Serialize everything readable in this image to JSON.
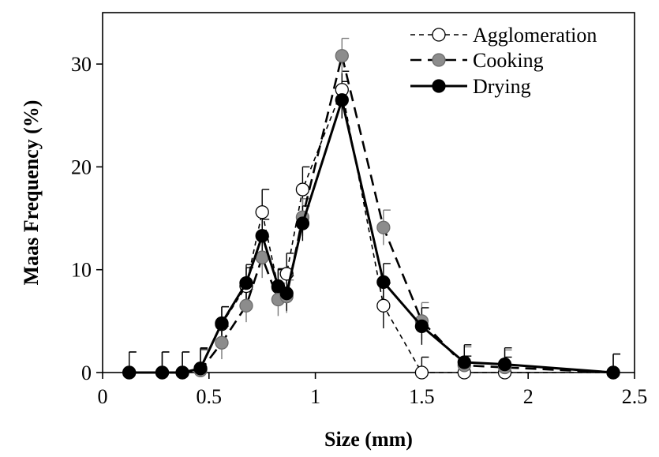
{
  "chart_data": {
    "type": "line",
    "xlabel": "Size (mm)",
    "ylabel": "Maas Frequency  (%)",
    "xlim": [
      0,
      2.5
    ],
    "ylim": [
      0,
      35
    ],
    "xticks": [
      0,
      0.5,
      1,
      1.5,
      2,
      2.5
    ],
    "xtick_labels": [
      "0",
      "0.5",
      "1",
      "1.5",
      "2",
      "2.5"
    ],
    "yticks": [
      0,
      10,
      20,
      30
    ],
    "ytick_labels": [
      "0",
      "10",
      "20",
      "30"
    ],
    "grid": false,
    "legend_position": "top-right",
    "series": [
      {
        "name": "Agglomeration",
        "line_style": "short-dash",
        "marker_fill": "#ffffff",
        "x": [
          0.125,
          0.28,
          0.375,
          0.46,
          0.56,
          0.675,
          0.75,
          0.825,
          0.865,
          0.94,
          1.125,
          1.32,
          1.5,
          1.7,
          1.89,
          2.4
        ],
        "y": [
          0,
          0,
          0,
          0.3,
          4.7,
          8.4,
          15.6,
          8.3,
          9.6,
          17.8,
          27.5,
          6.5,
          0,
          0,
          0,
          0
        ],
        "err": [
          2.0,
          2.0,
          2.0,
          2.0,
          1.7,
          1.8,
          2.2,
          1.8,
          2.0,
          2.2,
          1.8,
          2.2,
          1.5,
          1.6,
          1.5,
          1.8
        ]
      },
      {
        "name": "Cooking",
        "line_style": "long-dash",
        "marker_fill": "#8c8c8c",
        "x": [
          0.125,
          0.28,
          0.375,
          0.46,
          0.56,
          0.675,
          0.75,
          0.825,
          0.865,
          0.94,
          1.125,
          1.32,
          1.5,
          1.7,
          1.89,
          2.4
        ],
        "y": [
          0,
          0,
          0,
          0.2,
          2.9,
          6.5,
          11.2,
          7.1,
          7.4,
          15.1,
          30.8,
          14.1,
          5.0,
          0.7,
          0.5,
          0
        ],
        "err": [
          2.0,
          2.0,
          2.0,
          2.0,
          1.6,
          1.6,
          2.0,
          1.6,
          1.6,
          1.8,
          1.7,
          1.7,
          1.8,
          1.8,
          1.7,
          1.8
        ]
      },
      {
        "name": "Drying",
        "line_style": "solid",
        "marker_fill": "#000000",
        "x": [
          0.125,
          0.28,
          0.375,
          0.46,
          0.56,
          0.675,
          0.75,
          0.825,
          0.865,
          0.94,
          1.125,
          1.32,
          1.5,
          1.7,
          1.89,
          2.4
        ],
        "y": [
          0,
          0,
          0,
          0.4,
          4.8,
          8.7,
          13.3,
          8.4,
          7.7,
          14.5,
          26.5,
          8.8,
          4.5,
          1.0,
          0.8,
          0
        ],
        "err": [
          2.0,
          2.0,
          2.0,
          2.0,
          1.6,
          1.8,
          1.6,
          1.6,
          1.7,
          1.7,
          1.8,
          1.8,
          1.8,
          1.7,
          1.6,
          1.8
        ]
      }
    ]
  }
}
